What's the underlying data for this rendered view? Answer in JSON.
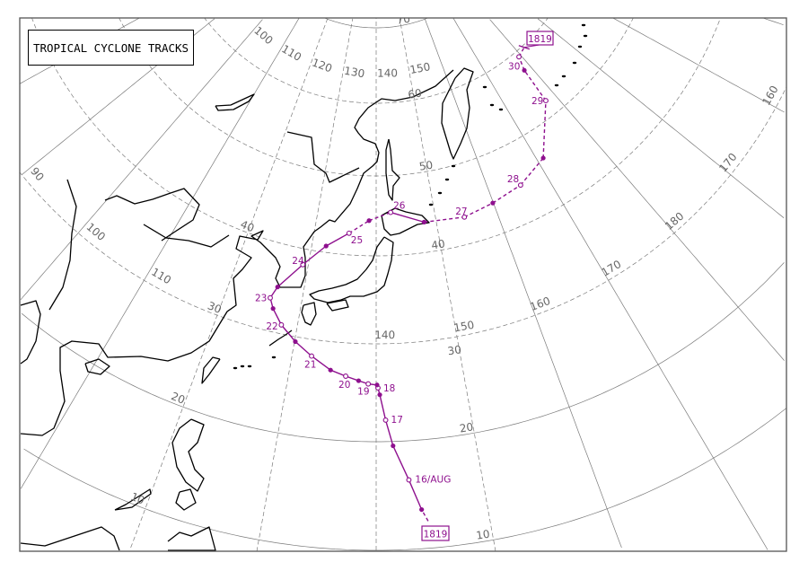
{
  "title": "TROPICAL CYCLONE TRACKS",
  "colors": {
    "track": "#8e108e",
    "coast": "#000000",
    "grid": "#7a7a7a",
    "frame": "#555555"
  },
  "grid": {
    "lat_lines": [
      0,
      10,
      20,
      30,
      40,
      50,
      60,
      70,
      80
    ],
    "lon_lines": [
      70,
      80,
      90,
      100,
      110,
      120,
      130,
      140,
      150,
      160,
      170,
      180,
      190,
      200,
      210
    ],
    "lat_labels": [
      "10",
      "20",
      "30",
      "40",
      "50",
      "60",
      "70"
    ],
    "lon_labels_low": [
      "140",
      "150",
      "160",
      "170"
    ],
    "lon_labels_high": [
      "100",
      "110",
      "120",
      "130",
      "140",
      "150"
    ],
    "lon_labels_east": [
      "180",
      "170",
      "160"
    ],
    "lon_labels_west": [
      "90",
      "100",
      "110"
    ]
  },
  "cyclone": {
    "id": "1819",
    "track": [
      {
        "lat": 12.5,
        "lon": 144.6,
        "marker": "none",
        "label": "",
        "segment": "dashed"
      },
      {
        "lat": 13.6,
        "lon": 144.1,
        "marker": "filled",
        "label": "",
        "segment": "dashed"
      },
      {
        "lat": 16.4,
        "lon": 143.1,
        "marker": "open",
        "label": "16/AUG",
        "segment": "solid"
      },
      {
        "lat": 19.6,
        "lon": 141.7,
        "marker": "filled",
        "label": "",
        "segment": "solid"
      },
      {
        "lat": 22.2,
        "lon": 141.0,
        "marker": "open",
        "label": "17",
        "segment": "solid"
      },
      {
        "lat": 24.8,
        "lon": 140.4,
        "marker": "filled",
        "label": "",
        "segment": "solid"
      },
      {
        "lat": 25.5,
        "lon": 140.2,
        "marker": "open",
        "label": "18",
        "segment": "solid"
      },
      {
        "lat": 25.8,
        "lon": 140.1,
        "marker": "filled",
        "label": "",
        "segment": "solid"
      },
      {
        "lat": 25.9,
        "lon": 139.1,
        "marker": "open",
        "label": "19",
        "segment": "solid"
      },
      {
        "lat": 26.2,
        "lon": 138.0,
        "marker": "filled",
        "label": "",
        "segment": "solid"
      },
      {
        "lat": 26.6,
        "lon": 136.5,
        "marker": "open",
        "label": "20",
        "segment": "solid"
      },
      {
        "lat": 27.1,
        "lon": 134.7,
        "marker": "filled",
        "label": "",
        "segment": "solid"
      },
      {
        "lat": 28.3,
        "lon": 132.3,
        "marker": "open",
        "label": "21",
        "segment": "solid"
      },
      {
        "lat": 29.5,
        "lon": 130.1,
        "marker": "filled",
        "label": "",
        "segment": "solid"
      },
      {
        "lat": 31.0,
        "lon": 128.0,
        "marker": "open",
        "label": "22",
        "segment": "solid"
      },
      {
        "lat": 32.6,
        "lon": 126.5,
        "marker": "filled",
        "label": "",
        "segment": "solid"
      },
      {
        "lat": 33.7,
        "lon": 125.8,
        "marker": "open",
        "label": "23",
        "segment": "solid"
      },
      {
        "lat": 35.1,
        "lon": 126.4,
        "marker": "filled",
        "label": "",
        "segment": "solid"
      },
      {
        "lat": 38.2,
        "lon": 129.2,
        "marker": "open",
        "label": "24",
        "segment": "solid"
      },
      {
        "lat": 40.8,
        "lon": 132.2,
        "marker": "filled",
        "label": "",
        "segment": "solid"
      },
      {
        "lat": 42.7,
        "lon": 135.6,
        "marker": "open",
        "label": "25",
        "segment": "solid"
      },
      {
        "lat": 44.4,
        "lon": 138.8,
        "marker": "filled",
        "label": "",
        "segment": "dashed"
      },
      {
        "lat": 45.4,
        "lon": 142.5,
        "marker": "open",
        "label": "26",
        "segment": "dashed"
      },
      {
        "lat": 43.8,
        "lon": 148.0,
        "marker": "filled",
        "label": "",
        "segment": "solid"
      },
      {
        "lat": 43.4,
        "lon": 154.7,
        "marker": "open",
        "label": "27",
        "segment": "dashed"
      },
      {
        "lat": 44.0,
        "lon": 159.9,
        "marker": "filled",
        "label": "",
        "segment": "dashed"
      },
      {
        "lat": 44.7,
        "lon": 165.4,
        "marker": "open",
        "label": "28",
        "segment": "dashed"
      },
      {
        "lat": 46.3,
        "lon": 171.1,
        "marker": "filled",
        "label": "",
        "segment": "dashed"
      },
      {
        "lat": 52.2,
        "lon": 177.8,
        "marker": "open",
        "label": "29",
        "segment": "dashed"
      },
      {
        "lat": 57.3,
        "lon": 178.3,
        "marker": "filled",
        "label": "",
        "segment": "dashed"
      },
      {
        "lat": 59.2,
        "lon": 179.4,
        "marker": "open",
        "label": "30",
        "segment": "dashed"
      },
      {
        "lat": 59.7,
        "lon": 182.0,
        "marker": "end",
        "label": "",
        "segment": "dashed"
      }
    ]
  }
}
